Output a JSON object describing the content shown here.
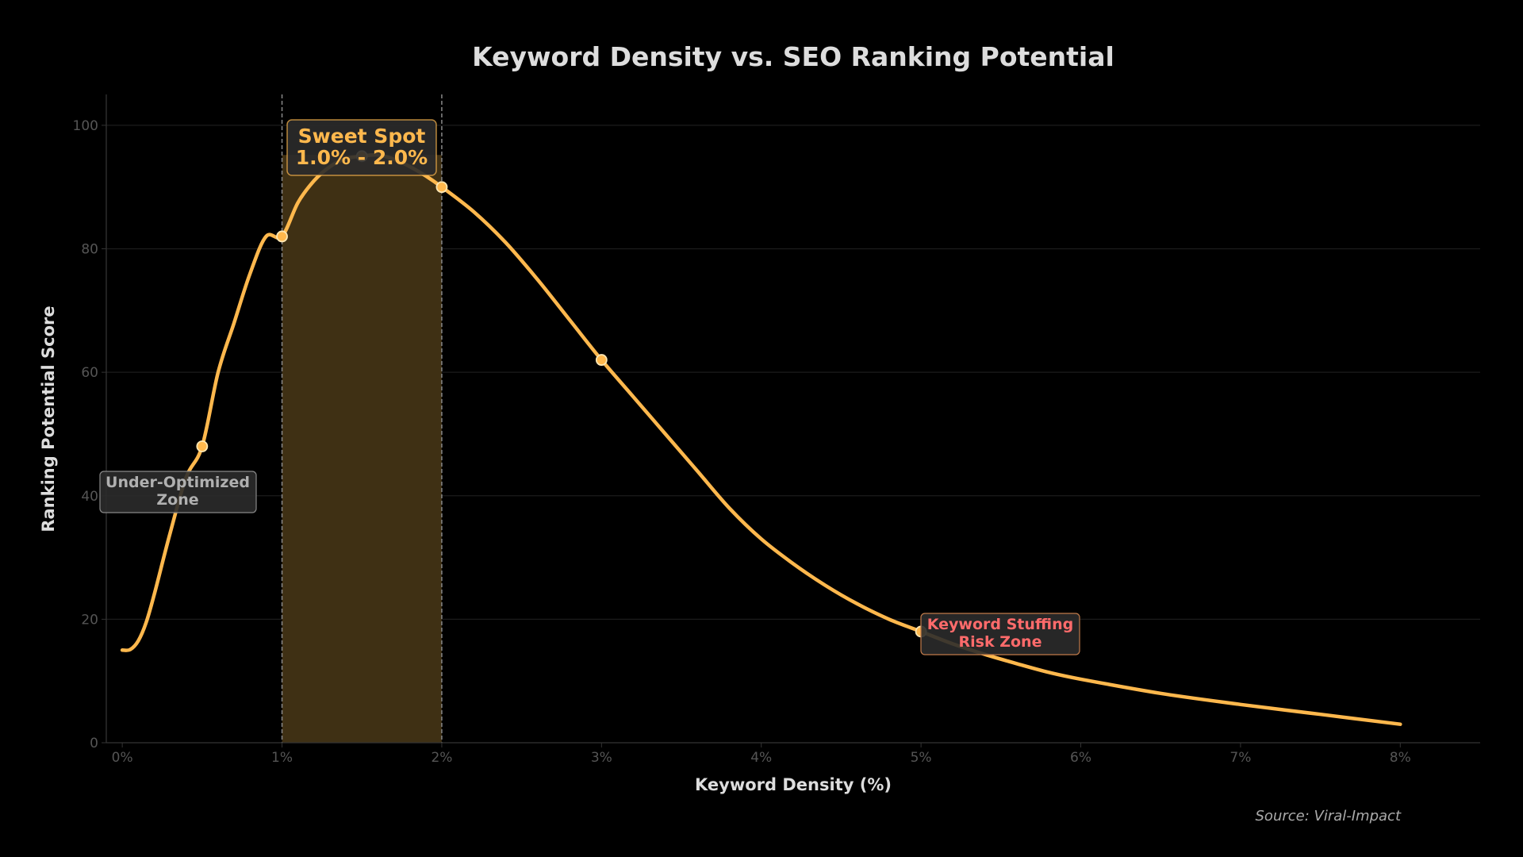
{
  "chart_data": {
    "type": "line",
    "title": "Keyword Density vs. SEO Ranking Potential",
    "xlabel": "Keyword Density (%)",
    "ylabel": "Ranking Potential Score",
    "xlim": [
      -0.1,
      8.5
    ],
    "ylim": [
      0,
      105
    ],
    "x_ticks": [
      0,
      1,
      2,
      3,
      4,
      5,
      6,
      7,
      8
    ],
    "x_tick_labels": [
      "0%",
      "1%",
      "2%",
      "3%",
      "4%",
      "5%",
      "6%",
      "7%",
      "8%"
    ],
    "y_ticks": [
      0,
      20,
      40,
      60,
      80,
      100
    ],
    "y_tick_labels": [
      "0",
      "20",
      "40",
      "60",
      "80",
      "100"
    ],
    "grid": true,
    "curve": {
      "x": [
        0,
        0.05,
        0.1,
        0.15,
        0.2,
        0.3,
        0.4,
        0.5,
        0.6,
        0.7,
        0.8,
        0.9,
        1.0,
        1.1,
        1.2,
        1.3,
        1.4,
        1.5,
        1.6,
        1.7,
        1.8,
        1.9,
        2.0,
        2.2,
        2.4,
        2.6,
        2.8,
        3.0,
        3.2,
        3.4,
        3.6,
        3.8,
        4.0,
        4.2,
        4.4,
        4.6,
        4.8,
        5.0,
        5.2,
        5.4,
        5.6,
        5.8,
        6.0,
        6.5,
        7.0,
        7.5,
        8.0
      ],
      "y": [
        15,
        15.1,
        16.5,
        19.5,
        24,
        34,
        43,
        48,
        60,
        68,
        76,
        82,
        82,
        87.5,
        91,
        93.3,
        94.6,
        95,
        95.2,
        94.5,
        93.3,
        91.8,
        90,
        86,
        81,
        75,
        68.5,
        62,
        56,
        50,
        44,
        38,
        33,
        29,
        25.5,
        22.5,
        20,
        18,
        16,
        14.3,
        12.8,
        11.4,
        10.3,
        8,
        6.2,
        4.6,
        3
      ]
    },
    "markers": {
      "x": [
        0.5,
        1.0,
        1.5,
        2.0,
        3.0,
        5.0
      ],
      "y": [
        48,
        82,
        95,
        90,
        62,
        18
      ]
    },
    "sweet_spot": {
      "x_start": 1.0,
      "x_end": 2.0
    },
    "annotations": {
      "sweet_spot": [
        "Sweet Spot",
        "1.0% - 2.0%"
      ],
      "under_optimized": [
        "Under-Optimized",
        "Zone"
      ],
      "stuffing": [
        "Keyword Stuffing",
        "Risk Zone"
      ]
    },
    "source": "Source: Viral-Impact",
    "colors": {
      "background": "#000000",
      "curve": "#ffb84d",
      "marker_edge": "#ffe7b3",
      "sweet_fill": "#3f3014",
      "grid": "#1c1c1c",
      "box_fill": "#2b2b2b",
      "stuffing_text": "#ff6b6b",
      "under_text": "#b0b0b0"
    }
  }
}
